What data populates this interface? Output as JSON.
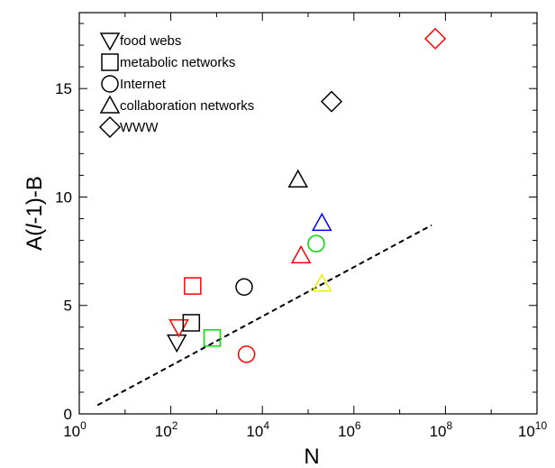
{
  "chart_data": {
    "type": "scatter",
    "xlabel": "N",
    "ylabel_parts": [
      "A(",
      "l",
      "-1)-B"
    ],
    "xscale": "log",
    "xlim": [
      1,
      10000000000
    ],
    "ylim": [
      0,
      18.5
    ],
    "x_ticks": [
      {
        "value": 1,
        "base": "10",
        "exp": "0"
      },
      {
        "value": 100,
        "base": "10",
        "exp": "2"
      },
      {
        "value": 10000,
        "base": "10",
        "exp": "4"
      },
      {
        "value": 1000000,
        "base": "10",
        "exp": "6"
      },
      {
        "value": 100000000,
        "base": "10",
        "exp": "8"
      },
      {
        "value": 10000000000,
        "base": "10",
        "exp": "10"
      }
    ],
    "y_ticks": [
      {
        "value": 0,
        "label": "0"
      },
      {
        "value": 5,
        "label": "5"
      },
      {
        "value": 10,
        "label": "10"
      },
      {
        "value": 15,
        "label": "15"
      }
    ],
    "legend": [
      {
        "marker": "triangle-down",
        "label": "food webs"
      },
      {
        "marker": "square",
        "label": "metabolic networks"
      },
      {
        "marker": "circle",
        "label": "Internet"
      },
      {
        "marker": "triangle-up",
        "label": "collaboration networks"
      },
      {
        "marker": "diamond",
        "label": "WWW"
      }
    ],
    "legend_position": "top-left",
    "series": [
      {
        "marker": "triangle-down",
        "points": [
          {
            "x": 135,
            "y": 3.3,
            "color": "#000000"
          },
          {
            "x": 150,
            "y": 4.0,
            "color": "#ff0000"
          }
        ]
      },
      {
        "marker": "square",
        "points": [
          {
            "x": 300,
            "y": 5.9,
            "color": "#ff0000"
          },
          {
            "x": 280,
            "y": 4.2,
            "color": "#000000"
          },
          {
            "x": 800,
            "y": 3.5,
            "color": "#00dd00"
          }
        ]
      },
      {
        "marker": "circle",
        "points": [
          {
            "x": 4000,
            "y": 5.85,
            "color": "#000000"
          },
          {
            "x": 4500,
            "y": 2.75,
            "color": "#ff0000"
          },
          {
            "x": 150000,
            "y": 7.85,
            "color": "#00dd00"
          }
        ]
      },
      {
        "marker": "triangle-up",
        "points": [
          {
            "x": 60000,
            "y": 10.8,
            "color": "#000000"
          },
          {
            "x": 200000,
            "y": 8.8,
            "color": "#0000ff"
          },
          {
            "x": 70000,
            "y": 7.3,
            "color": "#ff0000"
          },
          {
            "x": 200000,
            "y": 6.0,
            "color": "#eeee00"
          }
        ]
      },
      {
        "marker": "diamond",
        "points": [
          {
            "x": 60000000,
            "y": 17.3,
            "color": "#ff0000"
          },
          {
            "x": 325000,
            "y": 14.4,
            "color": "#000000"
          }
        ]
      }
    ],
    "fit_line": {
      "style": "dashed",
      "x": [
        2.5,
        50000000
      ],
      "y": [
        0.4,
        8.7
      ]
    },
    "colors": {
      "axis": "#000000",
      "fit_line": "#000000"
    }
  }
}
